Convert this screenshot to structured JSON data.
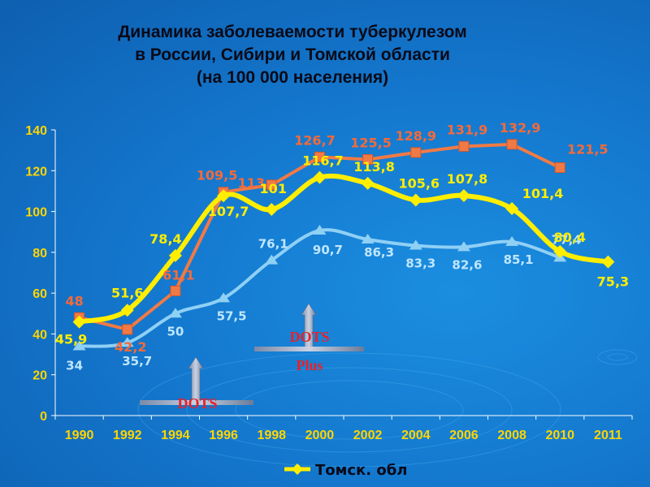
{
  "title": {
    "line1": "Динамика заболеваемости туберкулезом",
    "line2": "в России, Сибири и Томской области",
    "line3": "(на 100 000 населения)"
  },
  "colors": {
    "background": "#1479cf",
    "orange_series": "#f07a45",
    "yellow_series": "#ffee00",
    "cyan_series": "#8fd0f5",
    "tick_text": "#ffd500",
    "annotation": "#e8212a"
  },
  "annotations": {
    "dots": "DOTS",
    "dots_plus_1": "DOTS",
    "dots_plus_2": "Plus"
  },
  "chart_data": {
    "type": "line",
    "categories": [
      "1990",
      "1992",
      "1994",
      "1996",
      "1998",
      "2000",
      "2002",
      "2004",
      "2006",
      "2008",
      "2010",
      "2011"
    ],
    "ylim": [
      0,
      140
    ],
    "yticks": [
      0,
      20,
      40,
      60,
      80,
      100,
      120,
      140
    ],
    "legend_position": "bottom",
    "series": [
      {
        "key": "orange",
        "values": [
          48,
          42.2,
          61.1,
          109.5,
          113,
          126.7,
          125.5,
          128.9,
          131.9,
          132.9,
          121.5,
          null
        ],
        "labels": [
          "48",
          "42,2",
          "61,1",
          "109,5",
          "113",
          "126,7",
          "125,5",
          "128,9",
          "131,9",
          "132,9",
          "121,5",
          ""
        ]
      },
      {
        "key": "yellow",
        "name": "Томск. обл",
        "values": [
          45.9,
          51.6,
          78.4,
          107.7,
          101,
          116.7,
          113.8,
          105.6,
          107.8,
          101.4,
          80.4,
          75.3
        ],
        "labels": [
          "45,9",
          "51,6",
          "78,4",
          "107,7",
          "101",
          "116,7",
          "113,8",
          "105,6",
          "107,8",
          "101,4",
          "80,4",
          "75,3"
        ]
      },
      {
        "key": "cyan",
        "values": [
          34,
          35.7,
          50,
          57.5,
          76.1,
          90.7,
          86.3,
          83.3,
          82.6,
          85.1,
          77.4,
          null
        ],
        "labels": [
          "34",
          "35,7",
          "50",
          "57,5",
          "76,1",
          "90,7",
          "86,3",
          "83,3",
          "82,6",
          "85,1",
          "77,4",
          ""
        ]
      }
    ]
  }
}
